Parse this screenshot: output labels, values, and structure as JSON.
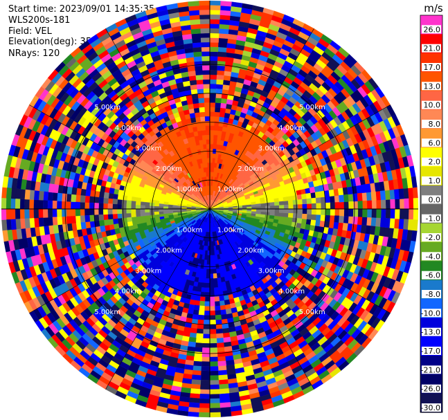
{
  "header": {
    "start_time": "Start time: 2023/09/01 14:35:35",
    "instrument": "WLS200s-181",
    "field": "Field: VEL",
    "elevation": "Elevation(deg): 35.30",
    "nrays": "NRays: 120"
  },
  "chart_data": {
    "type": "heatmap",
    "projection": "polar-ppi",
    "field": "VEL",
    "units": "m/s",
    "nrays": 120,
    "range_ring_labels": [
      "1.00km",
      "2.00km",
      "3.00km",
      "4.00km",
      "5.00km"
    ],
    "range_rings_km": [
      1,
      2,
      3,
      4,
      5
    ],
    "max_range_km": 7.2,
    "colorbar": {
      "unit": "m/s",
      "ticks": [
        "26.0",
        "21.0",
        "17.0",
        "13.0",
        "10.0",
        "8.0",
        "6.0",
        "2.0",
        "1.0",
        "0.0",
        "-1.0",
        "-2.0",
        "-4.0",
        "-6.0",
        "-8.0",
        "-10.0",
        "-13.0",
        "-17.0",
        "-21.0",
        "-26.0",
        "-30.0"
      ],
      "colors": [
        "#ff33cc",
        "#ff0000",
        "#ff3300",
        "#ff5500",
        "#ff6644",
        "#ff8855",
        "#ff9933",
        "#ffff00",
        "#e6e600",
        "#7f7f7f",
        "#666666",
        "#a6d633",
        "#66aa22",
        "#228822",
        "#1a7acc",
        "#1166ff",
        "#0000dd",
        "#0000ff",
        "#000088",
        "#000066",
        "#111155"
      ]
    },
    "wind_model": {
      "description": "Radial velocity pattern: positive (warm) toward top, negative (cool) toward bottom; noisy beyond ~3km",
      "max_speed_ms": 17,
      "clean_range_km": 3.0
    }
  }
}
